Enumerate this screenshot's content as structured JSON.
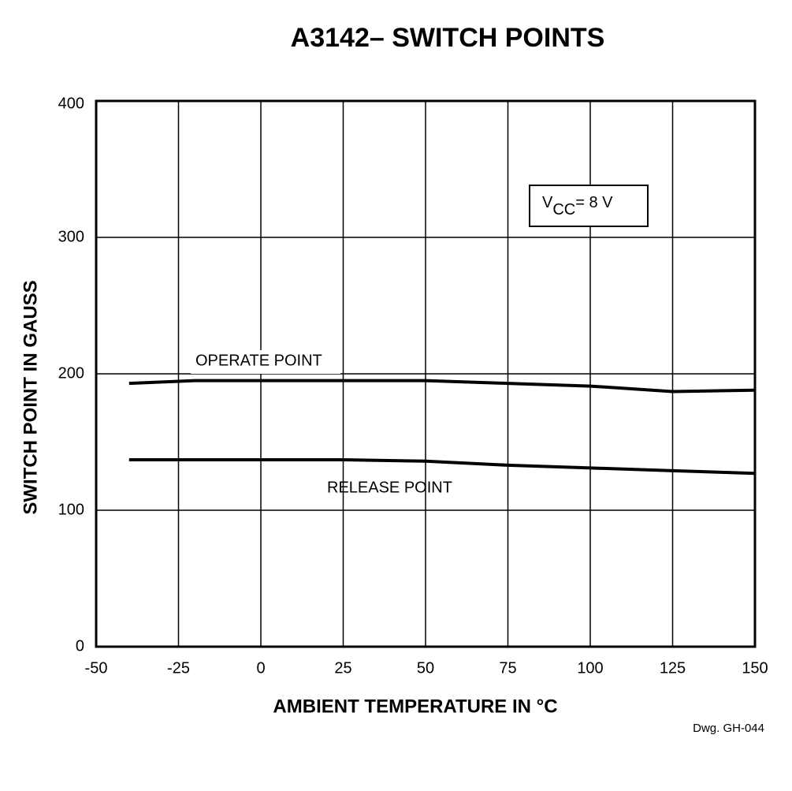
{
  "chart_data": {
    "type": "line",
    "title": "A3142– SWITCH POINTS",
    "x_label": "AMBIENT TEMPERATURE IN °C",
    "y_label": "SWITCH POINT IN GAUSS",
    "x": [
      -40,
      -20,
      0,
      25,
      50,
      75,
      100,
      125,
      150
    ],
    "series": [
      {
        "name": "OPERATE POINT",
        "color": "#000000",
        "values": [
          193,
          195,
          195,
          195,
          195,
          193,
          191,
          187,
          188
        ]
      },
      {
        "name": "RELEASE POINT",
        "color": "#000000",
        "values": [
          137,
          137,
          137,
          137,
          136,
          133,
          131,
          129,
          127
        ]
      }
    ],
    "xlim": [
      -50,
      150
    ],
    "xticks": [
      -50,
      -25,
      0,
      25,
      50,
      75,
      100,
      125,
      150
    ],
    "ylim": [
      0,
      400
    ],
    "yticks": [
      0,
      100,
      200,
      300,
      400
    ],
    "grid": true,
    "condition": {
      "symbol": "V",
      "subscript": "CC",
      "text": "= 8 V"
    },
    "footnote": "Dwg. GH-044"
  }
}
